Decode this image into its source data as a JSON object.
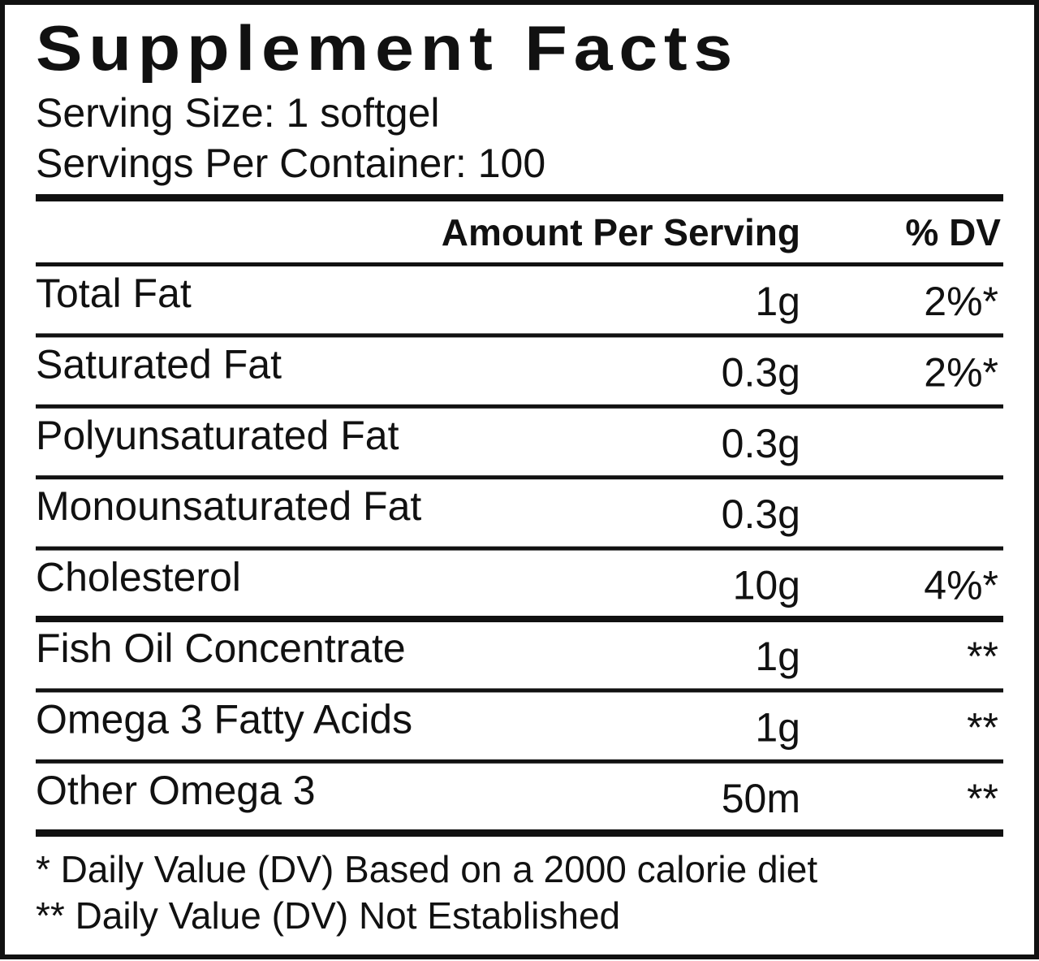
{
  "header": {
    "title": "Supplement Facts",
    "serving_size": "Serving Size: 1 softgel",
    "servings_per_container": "Servings Per Container: 100"
  },
  "table": {
    "columns": [
      "Amount Per Serving",
      "% DV"
    ],
    "rows": [
      {
        "name": "Total Fat",
        "amount": "1g",
        "dv": "2%*"
      },
      {
        "name": "Saturated Fat",
        "amount": "0.3g",
        "dv": "2%*"
      },
      {
        "name": "Polyunsaturated Fat",
        "amount": "0.3g"
      },
      {
        "name": "Monounsaturated Fat",
        "amount": "0.3g"
      },
      {
        "name": "Cholesterol",
        "amount": "10g",
        "dv": "4%*"
      },
      {
        "name": "Fish Oil Concentrate",
        "amount": "1g",
        "dv": "**"
      },
      {
        "name": "Omega 3 Fatty Acids",
        "amount": "1g",
        "dv": "**"
      },
      {
        "name": "Other Omega 3",
        "amount": "50m",
        "dv": "**"
      }
    ]
  },
  "footnotes": [
    "* Daily Value (DV) Based on a 2000 calorie diet",
    "** Daily Value (DV) Not Established"
  ]
}
